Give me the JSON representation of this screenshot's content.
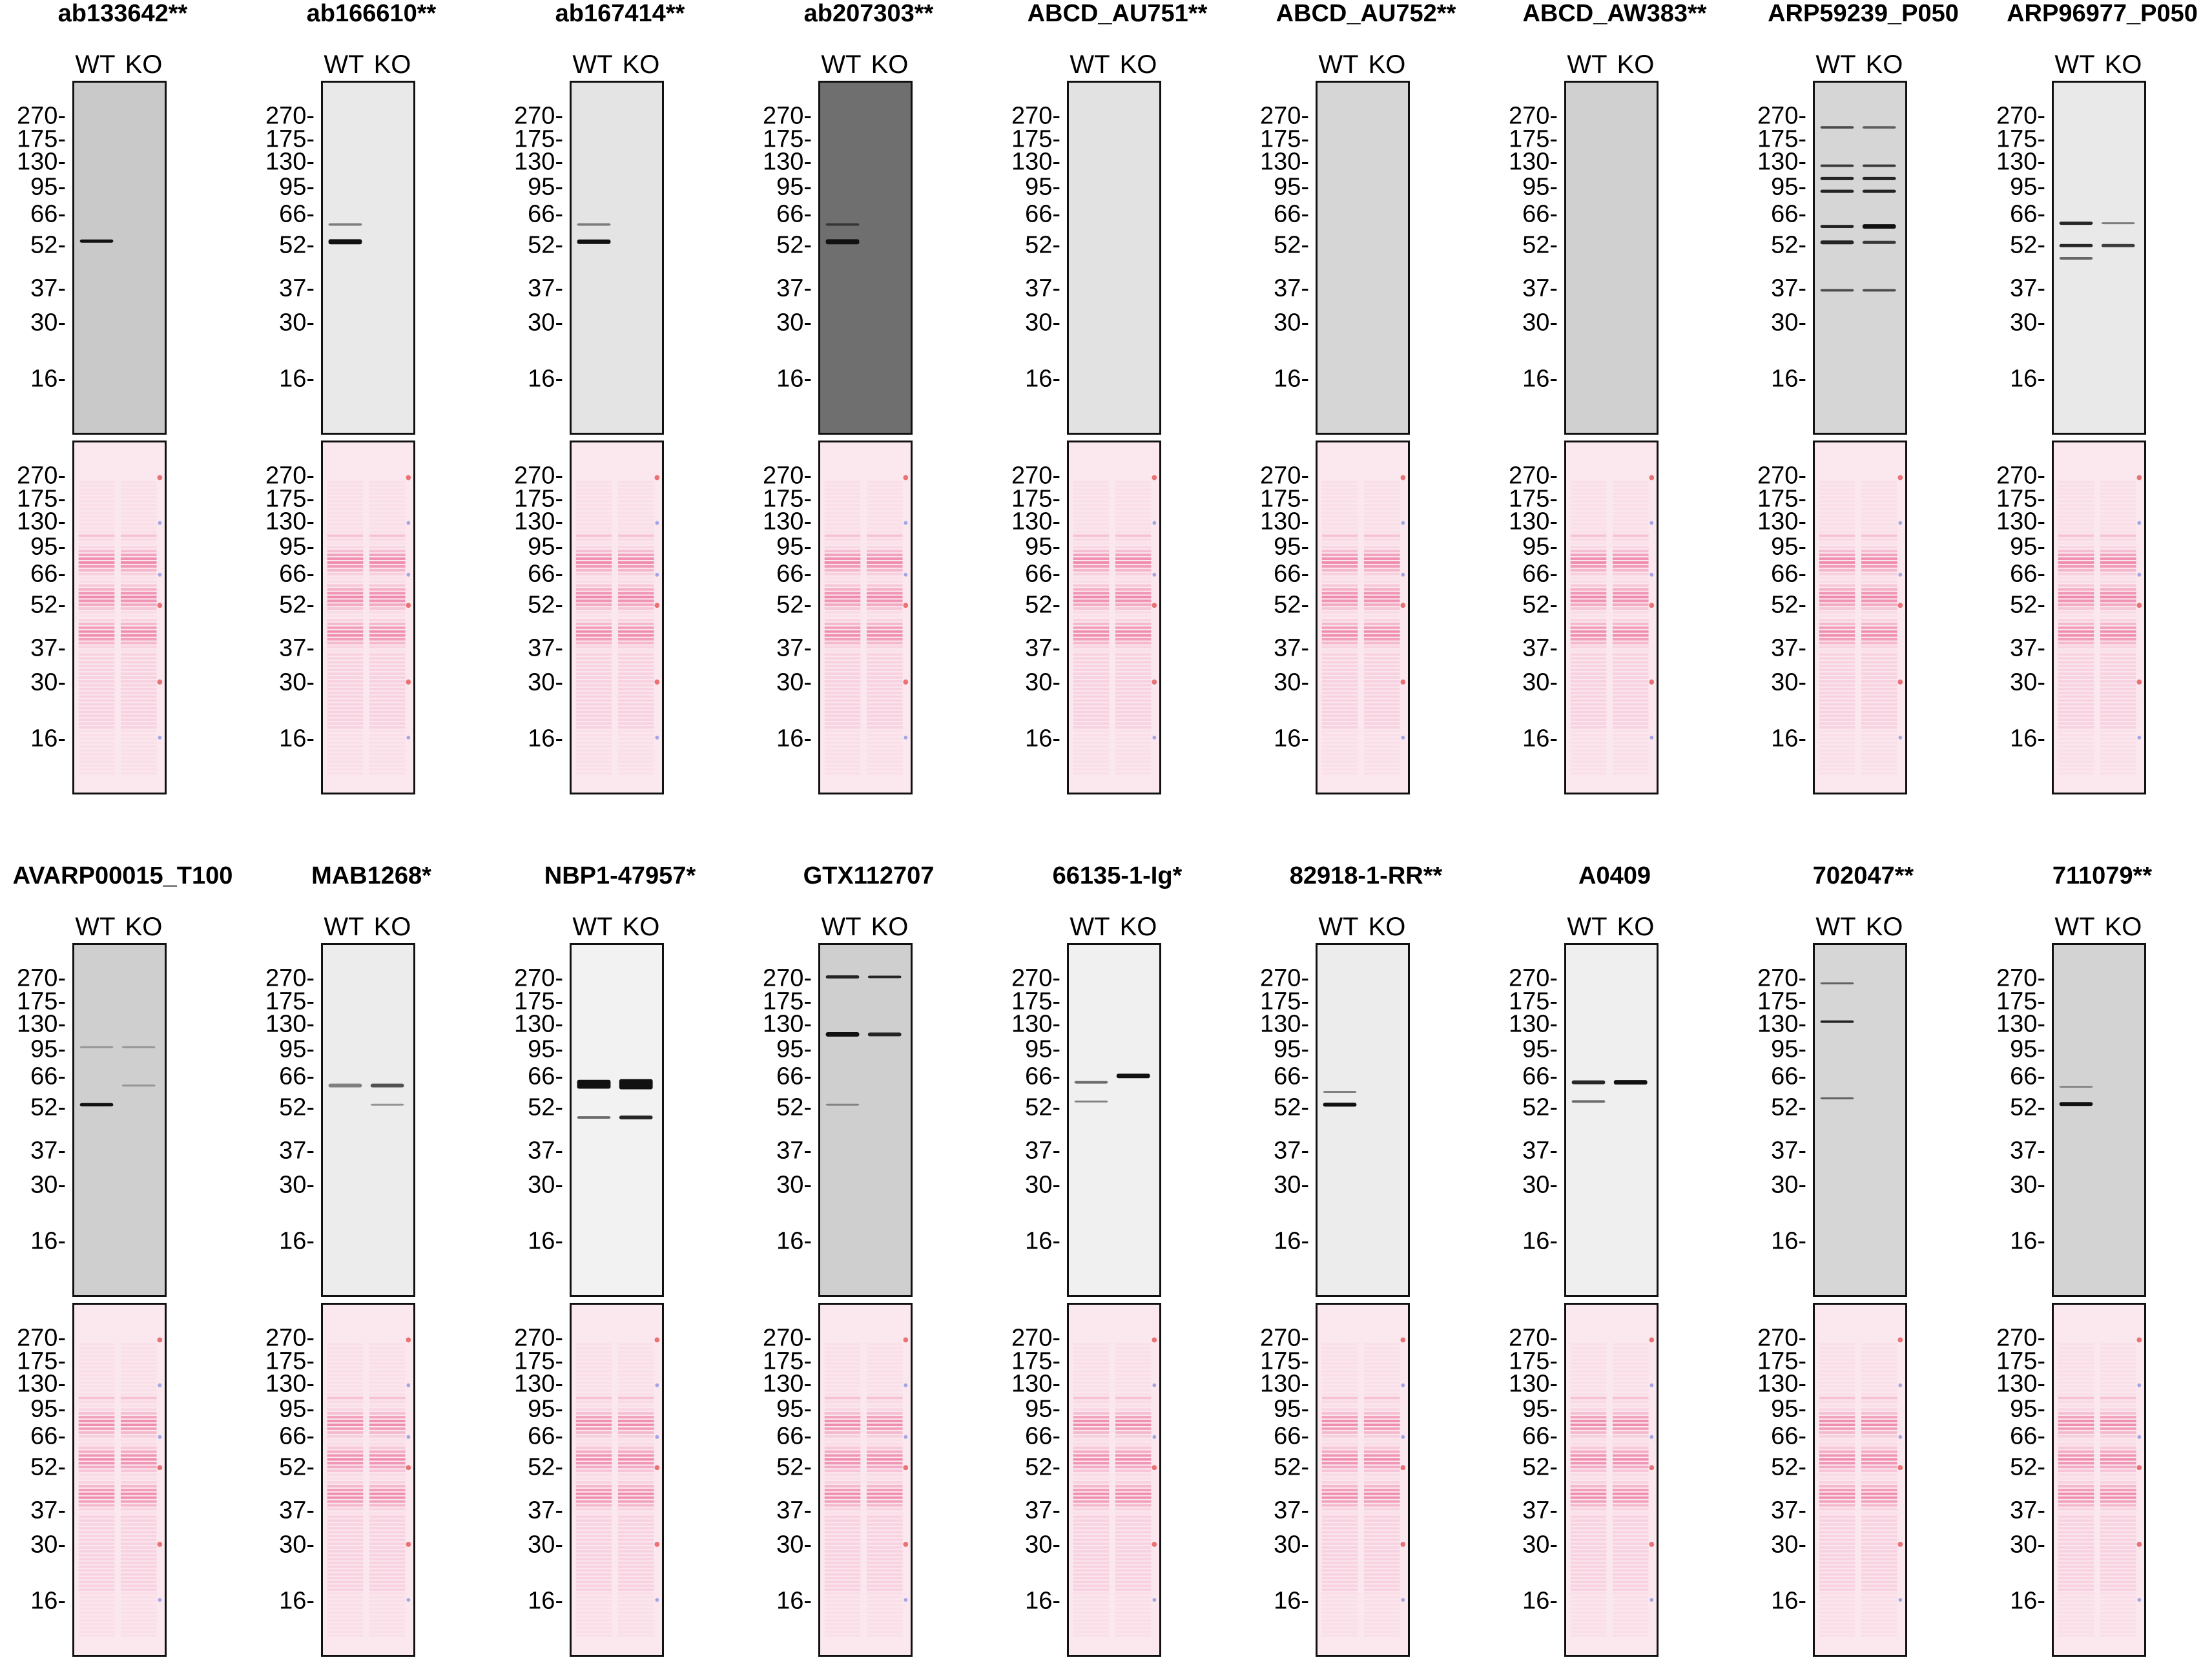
{
  "lanes": {
    "wt": "WT",
    "ko": "KO"
  },
  "mw_markers": [
    "270",
    "175",
    "130",
    "95",
    "66",
    "52",
    "37",
    "30",
    "16"
  ],
  "colors": {
    "ponceau": "#e8588a",
    "ponceau_bg": "#fbe8ef",
    "band": "#111111"
  },
  "panels": [
    {
      "title": "ab133642**",
      "bg": "#c9c9c9"
    },
    {
      "title": "ab166610**",
      "bg": "#e9e9e9"
    },
    {
      "title": "ab167414**",
      "bg": "#e4e4e4"
    },
    {
      "title": "ab207303**",
      "bg": "#6f6f6f"
    },
    {
      "title": "ABCD_AU751**",
      "bg": "#e2e2e2"
    },
    {
      "title": "ABCD_AU752**",
      "bg": "#d6d6d6"
    },
    {
      "title": "ABCD_AW383**",
      "bg": "#d0d0d0"
    },
    {
      "title": "ARP59239_P050",
      "bg": "#d6d6d6"
    },
    {
      "title": "ARP96977_P050",
      "bg": "#e9e9e9"
    },
    {
      "title": "AVARP00015_T100",
      "bg": "#cfcfcf"
    },
    {
      "title": "MAB1268*",
      "bg": "#ececec"
    },
    {
      "title": "NBP1-47957*",
      "bg": "#f2f2f2"
    },
    {
      "title": "GTX112707",
      "bg": "#cfcfcf"
    },
    {
      "title": "66135-1-Ig*",
      "bg": "#f0f0f0"
    },
    {
      "title": "82918-1-RR**",
      "bg": "#ececec"
    },
    {
      "title": "A0409",
      "bg": "#efefef"
    },
    {
      "title": "702047**",
      "bg": "#d6d6d6"
    },
    {
      "title": "711079**",
      "bg": "#d3d3d3"
    }
  ]
}
